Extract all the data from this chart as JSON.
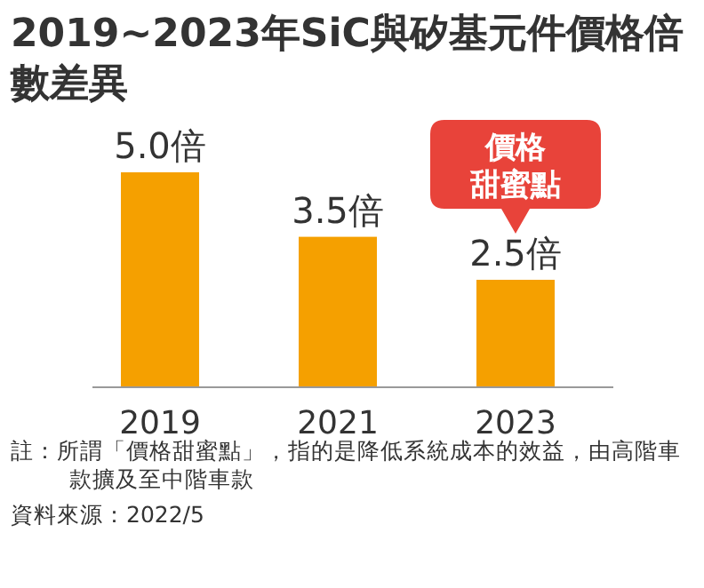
{
  "chart_data": {
    "type": "bar",
    "title": "2019~2023年SiC與矽基元件價格倍數差異",
    "categories": [
      "2019",
      "2021",
      "2023"
    ],
    "values": [
      5.0,
      3.5,
      2.5
    ],
    "value_labels": [
      "5.0倍",
      "3.5倍",
      "2.5倍"
    ],
    "color": "#f5a000",
    "annotations": [
      {
        "text": "價格甜蜜點",
        "x": "2023",
        "y": 2.5
      },
      "註：所謂「價格甜蜜點」，指的是降低系統成本的效益，由高階車款擴及至中階車款",
      "資料來源：2022/5"
    ]
  }
}
